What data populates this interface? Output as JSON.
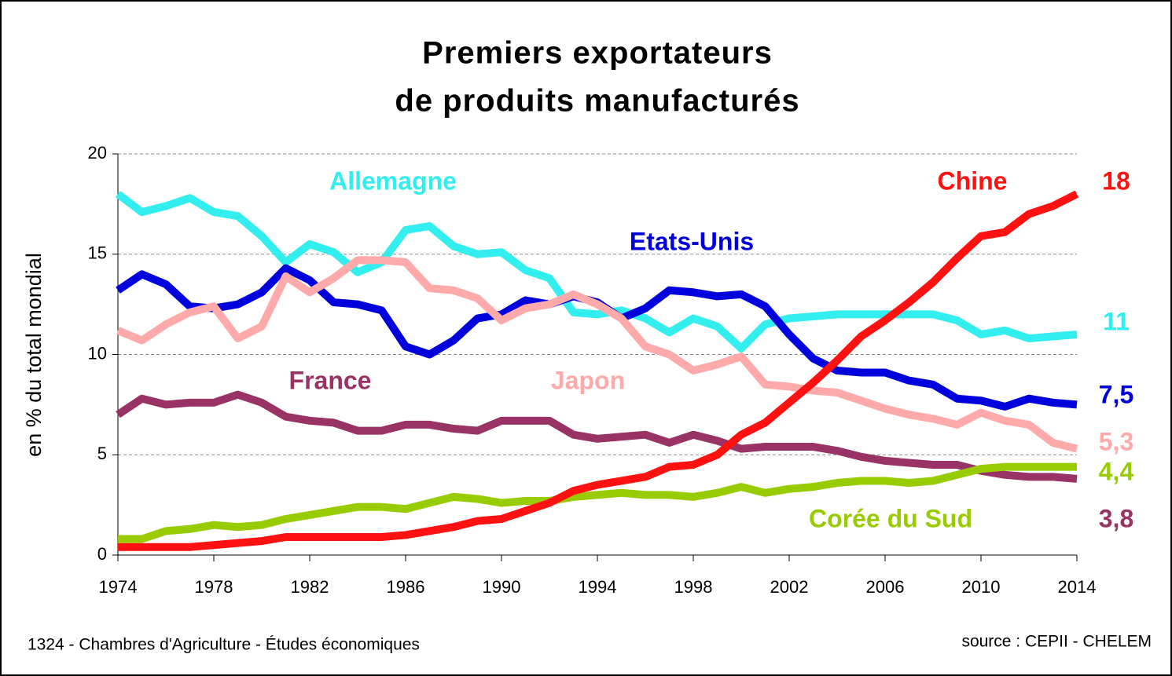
{
  "chart_data": {
    "type": "line",
    "title": [
      "Premiers exportateurs",
      "de produits manufacturés"
    ],
    "y_label": "en % du total mondial",
    "footer_left": "1324 - Chambres d'Agriculture - Études économiques",
    "footer_right": "source : CEPII - CHELEM",
    "x": [
      1974,
      1975,
      1976,
      1977,
      1978,
      1979,
      1980,
      1981,
      1982,
      1983,
      1984,
      1985,
      1986,
      1987,
      1988,
      1989,
      1990,
      1991,
      1992,
      1993,
      1994,
      1995,
      1996,
      1997,
      1998,
      1999,
      2000,
      2001,
      2002,
      2003,
      2004,
      2005,
      2006,
      2007,
      2008,
      2009,
      2010,
      2011,
      2012,
      2013,
      2014
    ],
    "xlim": [
      1974,
      2014
    ],
    "xticks": [
      1974,
      1978,
      1982,
      1986,
      1990,
      1994,
      1998,
      2002,
      2006,
      2010,
      2014
    ],
    "ylim": [
      0,
      20
    ],
    "yticks": [
      0,
      5,
      10,
      15,
      20
    ],
    "grid": true,
    "series": [
      {
        "name": "Allemagne",
        "color": "#33eeee",
        "values": [
          18.0,
          17.1,
          17.4,
          17.8,
          17.1,
          16.9,
          15.9,
          14.6,
          15.5,
          15.1,
          14.1,
          14.6,
          16.2,
          16.4,
          15.4,
          15.0,
          15.1,
          14.2,
          13.8,
          12.1,
          12.0,
          12.2,
          11.8,
          11.1,
          11.8,
          11.4,
          10.3,
          11.5,
          11.8,
          11.9,
          12.0,
          12.0,
          12.0,
          12.0,
          12.0,
          11.7,
          11.0,
          11.2,
          10.8,
          10.9,
          11.0
        ],
        "value_labels": [
          null,
          null,
          null,
          null,
          null,
          null,
          null,
          null,
          null,
          null,
          null,
          null,
          null,
          null,
          null,
          null,
          null,
          null,
          null,
          null,
          null,
          null,
          null,
          null,
          null,
          null,
          null,
          null,
          null,
          null,
          null,
          null,
          null,
          null,
          null,
          null,
          null,
          null,
          null,
          null,
          "11"
        ]
      },
      {
        "name": "Etats-Unis",
        "color": "#0000dd",
        "values": [
          13.2,
          14.0,
          13.5,
          12.4,
          12.3,
          12.5,
          13.1,
          14.3,
          13.7,
          12.6,
          12.5,
          12.2,
          10.4,
          10.0,
          10.7,
          11.8,
          12.0,
          12.7,
          12.5,
          12.9,
          12.6,
          11.8,
          12.3,
          13.2,
          13.1,
          12.9,
          13.0,
          12.4,
          11.0,
          9.8,
          9.2,
          9.1,
          9.1,
          8.7,
          8.5,
          7.8,
          7.7,
          7.4,
          7.8,
          7.6,
          7.5
        ],
        "value_labels": [
          null,
          null,
          null,
          null,
          null,
          null,
          null,
          null,
          null,
          null,
          null,
          null,
          null,
          null,
          null,
          null,
          null,
          null,
          null,
          null,
          null,
          null,
          null,
          null,
          null,
          null,
          null,
          null,
          null,
          null,
          null,
          null,
          null,
          null,
          null,
          null,
          null,
          null,
          null,
          null,
          "7,5"
        ]
      },
      {
        "name": "Japon",
        "color": "#ffaaaa",
        "values": [
          11.2,
          10.7,
          11.5,
          12.1,
          12.4,
          10.8,
          11.4,
          13.9,
          13.1,
          13.8,
          14.7,
          14.7,
          14.6,
          13.3,
          13.2,
          12.8,
          11.7,
          12.3,
          12.5,
          13.0,
          12.5,
          11.8,
          10.4,
          10.0,
          9.2,
          9.5,
          9.9,
          8.5,
          8.4,
          8.2,
          8.1,
          7.7,
          7.3,
          7.0,
          6.8,
          6.5,
          7.1,
          6.7,
          6.5,
          5.6,
          5.3
        ],
        "value_labels": [
          null,
          null,
          null,
          null,
          null,
          null,
          null,
          null,
          null,
          null,
          null,
          null,
          null,
          null,
          null,
          null,
          null,
          null,
          null,
          null,
          null,
          null,
          null,
          null,
          null,
          null,
          null,
          null,
          null,
          null,
          null,
          null,
          null,
          null,
          null,
          null,
          null,
          null,
          null,
          null,
          "5,3"
        ]
      },
      {
        "name": "France",
        "color": "#993366",
        "values": [
          7.0,
          7.8,
          7.5,
          7.6,
          7.6,
          8.0,
          7.6,
          6.9,
          6.7,
          6.6,
          6.2,
          6.2,
          6.5,
          6.5,
          6.3,
          6.2,
          6.7,
          6.7,
          6.7,
          6.0,
          5.8,
          5.9,
          6.0,
          5.6,
          6.0,
          5.7,
          5.3,
          5.4,
          5.4,
          5.4,
          5.2,
          4.9,
          4.7,
          4.6,
          4.5,
          4.5,
          4.2,
          4.0,
          3.9,
          3.9,
          3.8
        ],
        "value_labels": [
          null,
          null,
          null,
          null,
          null,
          null,
          null,
          null,
          null,
          null,
          null,
          null,
          null,
          null,
          null,
          null,
          null,
          null,
          null,
          null,
          null,
          null,
          null,
          null,
          null,
          null,
          null,
          null,
          null,
          null,
          null,
          null,
          null,
          null,
          null,
          null,
          null,
          null,
          null,
          null,
          "3,8"
        ]
      },
      {
        "name": "Corée du Sud",
        "color": "#99cc00",
        "values": [
          0.8,
          0.8,
          1.2,
          1.3,
          1.5,
          1.4,
          1.5,
          1.8,
          2.0,
          2.2,
          2.4,
          2.4,
          2.3,
          2.6,
          2.9,
          2.8,
          2.6,
          2.7,
          2.7,
          2.9,
          3.0,
          3.1,
          3.0,
          3.0,
          2.9,
          3.1,
          3.4,
          3.1,
          3.3,
          3.4,
          3.6,
          3.7,
          3.7,
          3.6,
          3.7,
          4.0,
          4.3,
          4.4,
          4.4,
          4.4,
          4.4
        ],
        "value_labels": [
          null,
          null,
          null,
          null,
          null,
          null,
          null,
          null,
          null,
          null,
          null,
          null,
          null,
          null,
          null,
          null,
          null,
          null,
          null,
          null,
          null,
          null,
          null,
          null,
          null,
          null,
          null,
          null,
          null,
          null,
          null,
          null,
          null,
          null,
          null,
          null,
          null,
          null,
          null,
          null,
          "4,4"
        ]
      },
      {
        "name": "Chine",
        "color": "#ff1111",
        "values": [
          0.4,
          0.4,
          0.4,
          0.4,
          0.5,
          0.6,
          0.7,
          0.9,
          0.9,
          0.9,
          0.9,
          0.9,
          1.0,
          1.2,
          1.4,
          1.7,
          1.8,
          2.2,
          2.6,
          3.2,
          3.5,
          3.7,
          3.9,
          4.4,
          4.5,
          5.0,
          6.0,
          6.6,
          7.6,
          8.6,
          9.7,
          10.9,
          11.7,
          12.6,
          13.6,
          14.8,
          15.9,
          16.1,
          17.0,
          17.4,
          18.0
        ],
        "value_labels": [
          null,
          null,
          null,
          null,
          null,
          null,
          null,
          null,
          null,
          null,
          null,
          null,
          null,
          null,
          null,
          null,
          null,
          null,
          null,
          null,
          null,
          null,
          null,
          null,
          null,
          null,
          null,
          null,
          null,
          null,
          null,
          null,
          null,
          null,
          null,
          null,
          null,
          null,
          null,
          null,
          "18"
        ]
      }
    ]
  }
}
